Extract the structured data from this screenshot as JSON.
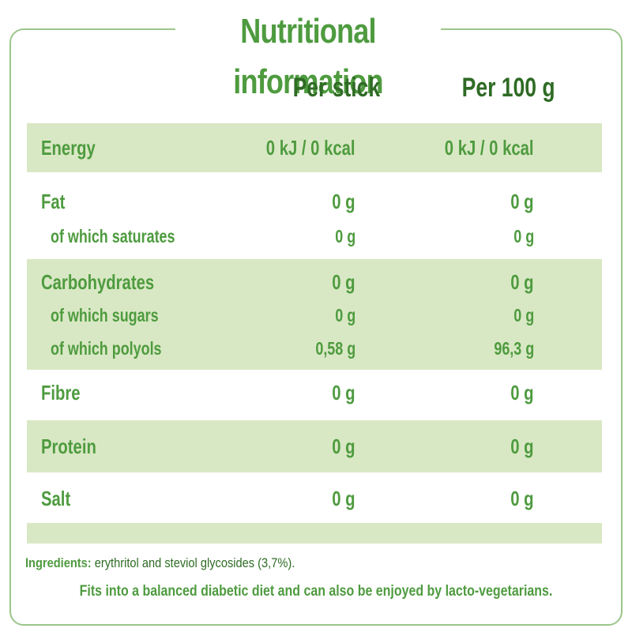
{
  "title": "Nutritional information",
  "columns": {
    "per_stick": "Per stick",
    "per_100g": "Per 100 g"
  },
  "rows": [
    {
      "label": "Energy",
      "per_stick": "0 kJ / 0 kcal",
      "per_100g": "0 kJ / 0 kcal"
    },
    {
      "label": "Fat",
      "per_stick": "0 g",
      "per_100g": "0 g"
    },
    {
      "label": "of which saturates",
      "per_stick": "0 g",
      "per_100g": "0 g"
    },
    {
      "label": "Carbohydrates",
      "per_stick": "0 g",
      "per_100g": "0 g"
    },
    {
      "label": "of which sugars",
      "per_stick": "0 g",
      "per_100g": "0 g"
    },
    {
      "label": "of which polyols",
      "per_stick": "0,58 g",
      "per_100g": "96,3 g"
    },
    {
      "label": "Fibre",
      "per_stick": "0 g",
      "per_100g": "0 g"
    },
    {
      "label": "Protein",
      "per_stick": "0 g",
      "per_100g": "0 g"
    },
    {
      "label": "Salt",
      "per_stick": "0 g",
      "per_100g": "0 g"
    }
  ],
  "ingredients": {
    "label": "Ingredients:",
    "text": "erythritol and steviol glycosides (3,7%)."
  },
  "note": "Fits into a balanced diabetic diet and can also be enjoyed by lacto-vegetarians.",
  "colors": {
    "green": "#4e9b3f",
    "dark_green": "#2f6b25",
    "band": "#d9e8c4",
    "border": "#9bc58a"
  }
}
